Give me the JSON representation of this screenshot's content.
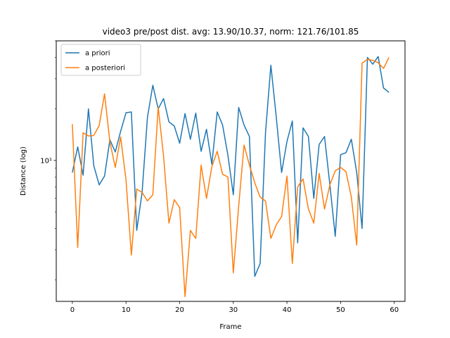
{
  "chart_data": {
    "type": "line",
    "title": "video3 pre/post dist. avg: 13.90/10.37, norm: 121.76/101.85",
    "xlabel": "Frame",
    "ylabel": "Distance (log)",
    "yscale": "log",
    "xlim": [
      -3,
      62
    ],
    "ylim": [
      1.5,
      50
    ],
    "xticks": [
      0,
      10,
      20,
      30,
      40,
      50,
      60
    ],
    "yticks": [
      10
    ],
    "ytick_labels": [
      "10¹"
    ],
    "legend_position": "top-left",
    "x": [
      0,
      1,
      2,
      3,
      4,
      5,
      6,
      7,
      8,
      9,
      10,
      11,
      12,
      13,
      14,
      15,
      16,
      17,
      18,
      19,
      20,
      21,
      22,
      23,
      24,
      25,
      26,
      27,
      28,
      29,
      30,
      31,
      32,
      33,
      34,
      35,
      36,
      37,
      38,
      39,
      40,
      41,
      42,
      43,
      44,
      45,
      46,
      47,
      48,
      49,
      50,
      51,
      52,
      53,
      54,
      55,
      56,
      57,
      58,
      59
    ],
    "series": [
      {
        "name": "a priori",
        "color": "#1f77b4",
        "values": [
          8.5,
          12.0,
          8.2,
          20.0,
          9.3,
          7.2,
          8.1,
          13.2,
          11.2,
          14.8,
          19.0,
          19.2,
          3.9,
          6.5,
          17.9,
          27.5,
          20.0,
          23.0,
          16.8,
          15.9,
          12.6,
          18.8,
          13.3,
          18.9,
          11.3,
          15.2,
          9.5,
          19.2,
          16.1,
          10.7,
          6.3,
          20.4,
          16.1,
          13.8,
          2.1,
          2.5,
          14.5,
          36.0,
          18.0,
          8.5,
          12.9,
          17.0,
          3.3,
          15.5,
          13.8,
          6.0,
          12.4,
          13.8,
          7.2,
          3.6,
          10.8,
          11.1,
          13.3,
          8.5,
          4.0,
          40.0,
          36.5,
          40.5,
          26.5,
          25.0
        ]
      },
      {
        "name": "a posteriori",
        "color": "#ff7f0e",
        "values": [
          16.3,
          3.1,
          14.5,
          13.9,
          14.0,
          16.0,
          24.5,
          12.8,
          9.1,
          13.7,
          7.7,
          2.8,
          6.8,
          6.5,
          5.8,
          6.3,
          20.5,
          10.6,
          4.3,
          5.9,
          5.3,
          1.6,
          3.9,
          3.5,
          9.4,
          6.0,
          9.2,
          11.3,
          8.3,
          8.0,
          2.2,
          5.4,
          12.3,
          9.4,
          7.4,
          6.1,
          5.8,
          3.5,
          4.2,
          4.7,
          8.1,
          2.5,
          7.0,
          7.8,
          5.2,
          4.3,
          8.4,
          5.2,
          7.2,
          8.7,
          9.1,
          8.6,
          6.1,
          3.2,
          37.0,
          39.0,
          38.5,
          37.2,
          34.5,
          40.0
        ]
      }
    ]
  }
}
